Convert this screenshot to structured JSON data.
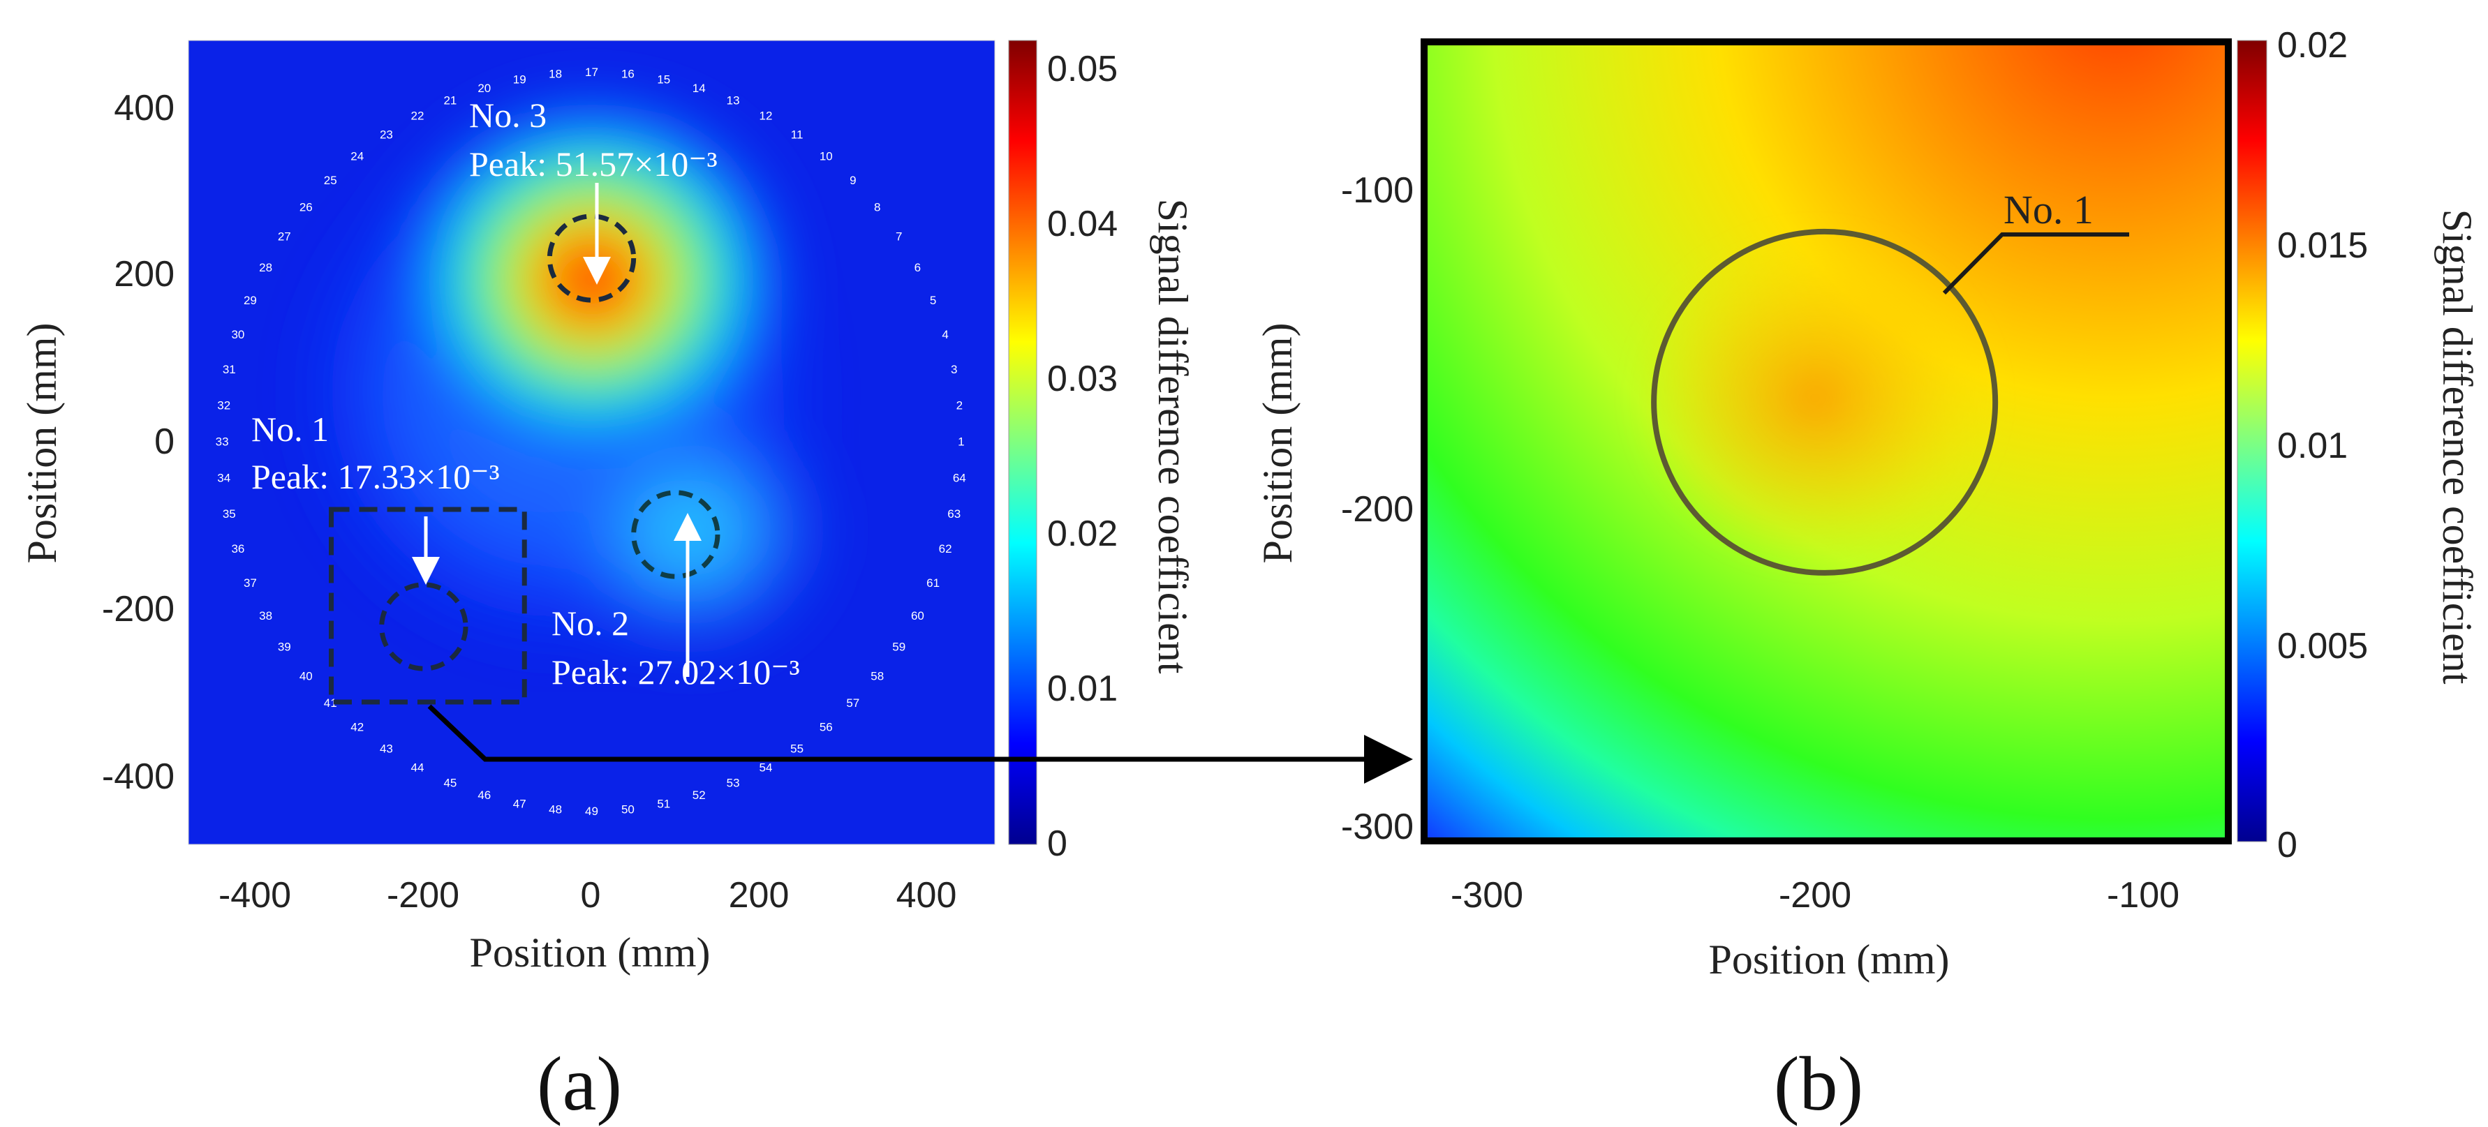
{
  "chart_data": [
    {
      "type": "heatmap",
      "panel_label": "(a)",
      "xlabel": "Position (mm)",
      "ylabel": "Position (mm)",
      "xlim": [
        -480,
        480
      ],
      "ylim": [
        -480,
        480
      ],
      "x_ticks": [
        "-400",
        "-200",
        "0",
        "200",
        "400"
      ],
      "y_ticks": [
        "400",
        "200",
        "0",
        "-200",
        "-400"
      ],
      "colorbar": {
        "label": "Signal difference coefficient",
        "range": [
          0,
          0.052
        ],
        "ticks": [
          "0.05",
          "0.04",
          "0.03",
          "0.02",
          "0.01",
          "0"
        ]
      },
      "sensor_count": 64,
      "sensor_labels": [
        "1",
        "2",
        "3",
        "4",
        "5",
        "6",
        "7",
        "8",
        "9",
        "10",
        "11",
        "12",
        "13",
        "14",
        "15",
        "16",
        "17",
        "18",
        "19",
        "20",
        "21",
        "22",
        "23",
        "24",
        "25",
        "26",
        "27",
        "28",
        "29",
        "30",
        "31",
        "32",
        "33",
        "34",
        "35",
        "36",
        "37",
        "38",
        "39",
        "40",
        "41",
        "42",
        "43",
        "44",
        "45",
        "46",
        "47",
        "48",
        "49",
        "50",
        "51",
        "52",
        "53",
        "54",
        "55",
        "56",
        "57",
        "58",
        "59",
        "60",
        "61",
        "62",
        "63",
        "64"
      ],
      "defects": [
        {
          "name": "No. 1",
          "peak": "Peak: 17.33×10⁻³",
          "x": -200,
          "y": -220,
          "r": 50
        },
        {
          "name": "No. 2",
          "peak": "Peak: 27.02×10⁻³",
          "x": 100,
          "y": -110,
          "r": 50
        },
        {
          "name": "No. 3",
          "peak": "Peak: 51.57×10⁻³",
          "x": 0,
          "y": 220,
          "r": 50
        }
      ],
      "zoom_box": {
        "x": [
          -310,
          -80
        ],
        "y": [
          -310,
          -80
        ]
      }
    },
    {
      "type": "heatmap",
      "panel_label": "(b)",
      "xlabel": "Position (mm)",
      "ylabel": "Position (mm)",
      "xlim": [
        -315,
        -70
      ],
      "ylim": [
        -310,
        -55
      ],
      "x_ticks": [
        "-300",
        "-200",
        "-100"
      ],
      "y_ticks": [
        "-100",
        "-200",
        "-300"
      ],
      "colorbar": {
        "label": "Signal difference coefficient",
        "range": [
          0,
          0.02
        ],
        "ticks": [
          "0.02",
          "0.015",
          "0.01",
          "0.005",
          "0"
        ]
      },
      "annotation": {
        "name": "No. 1",
        "x": -193,
        "y": -170,
        "r": 52
      }
    }
  ],
  "colors": {
    "circle_a": "#1b2a3f",
    "circle_b": "#5c5a32",
    "arrow": "#000000"
  }
}
